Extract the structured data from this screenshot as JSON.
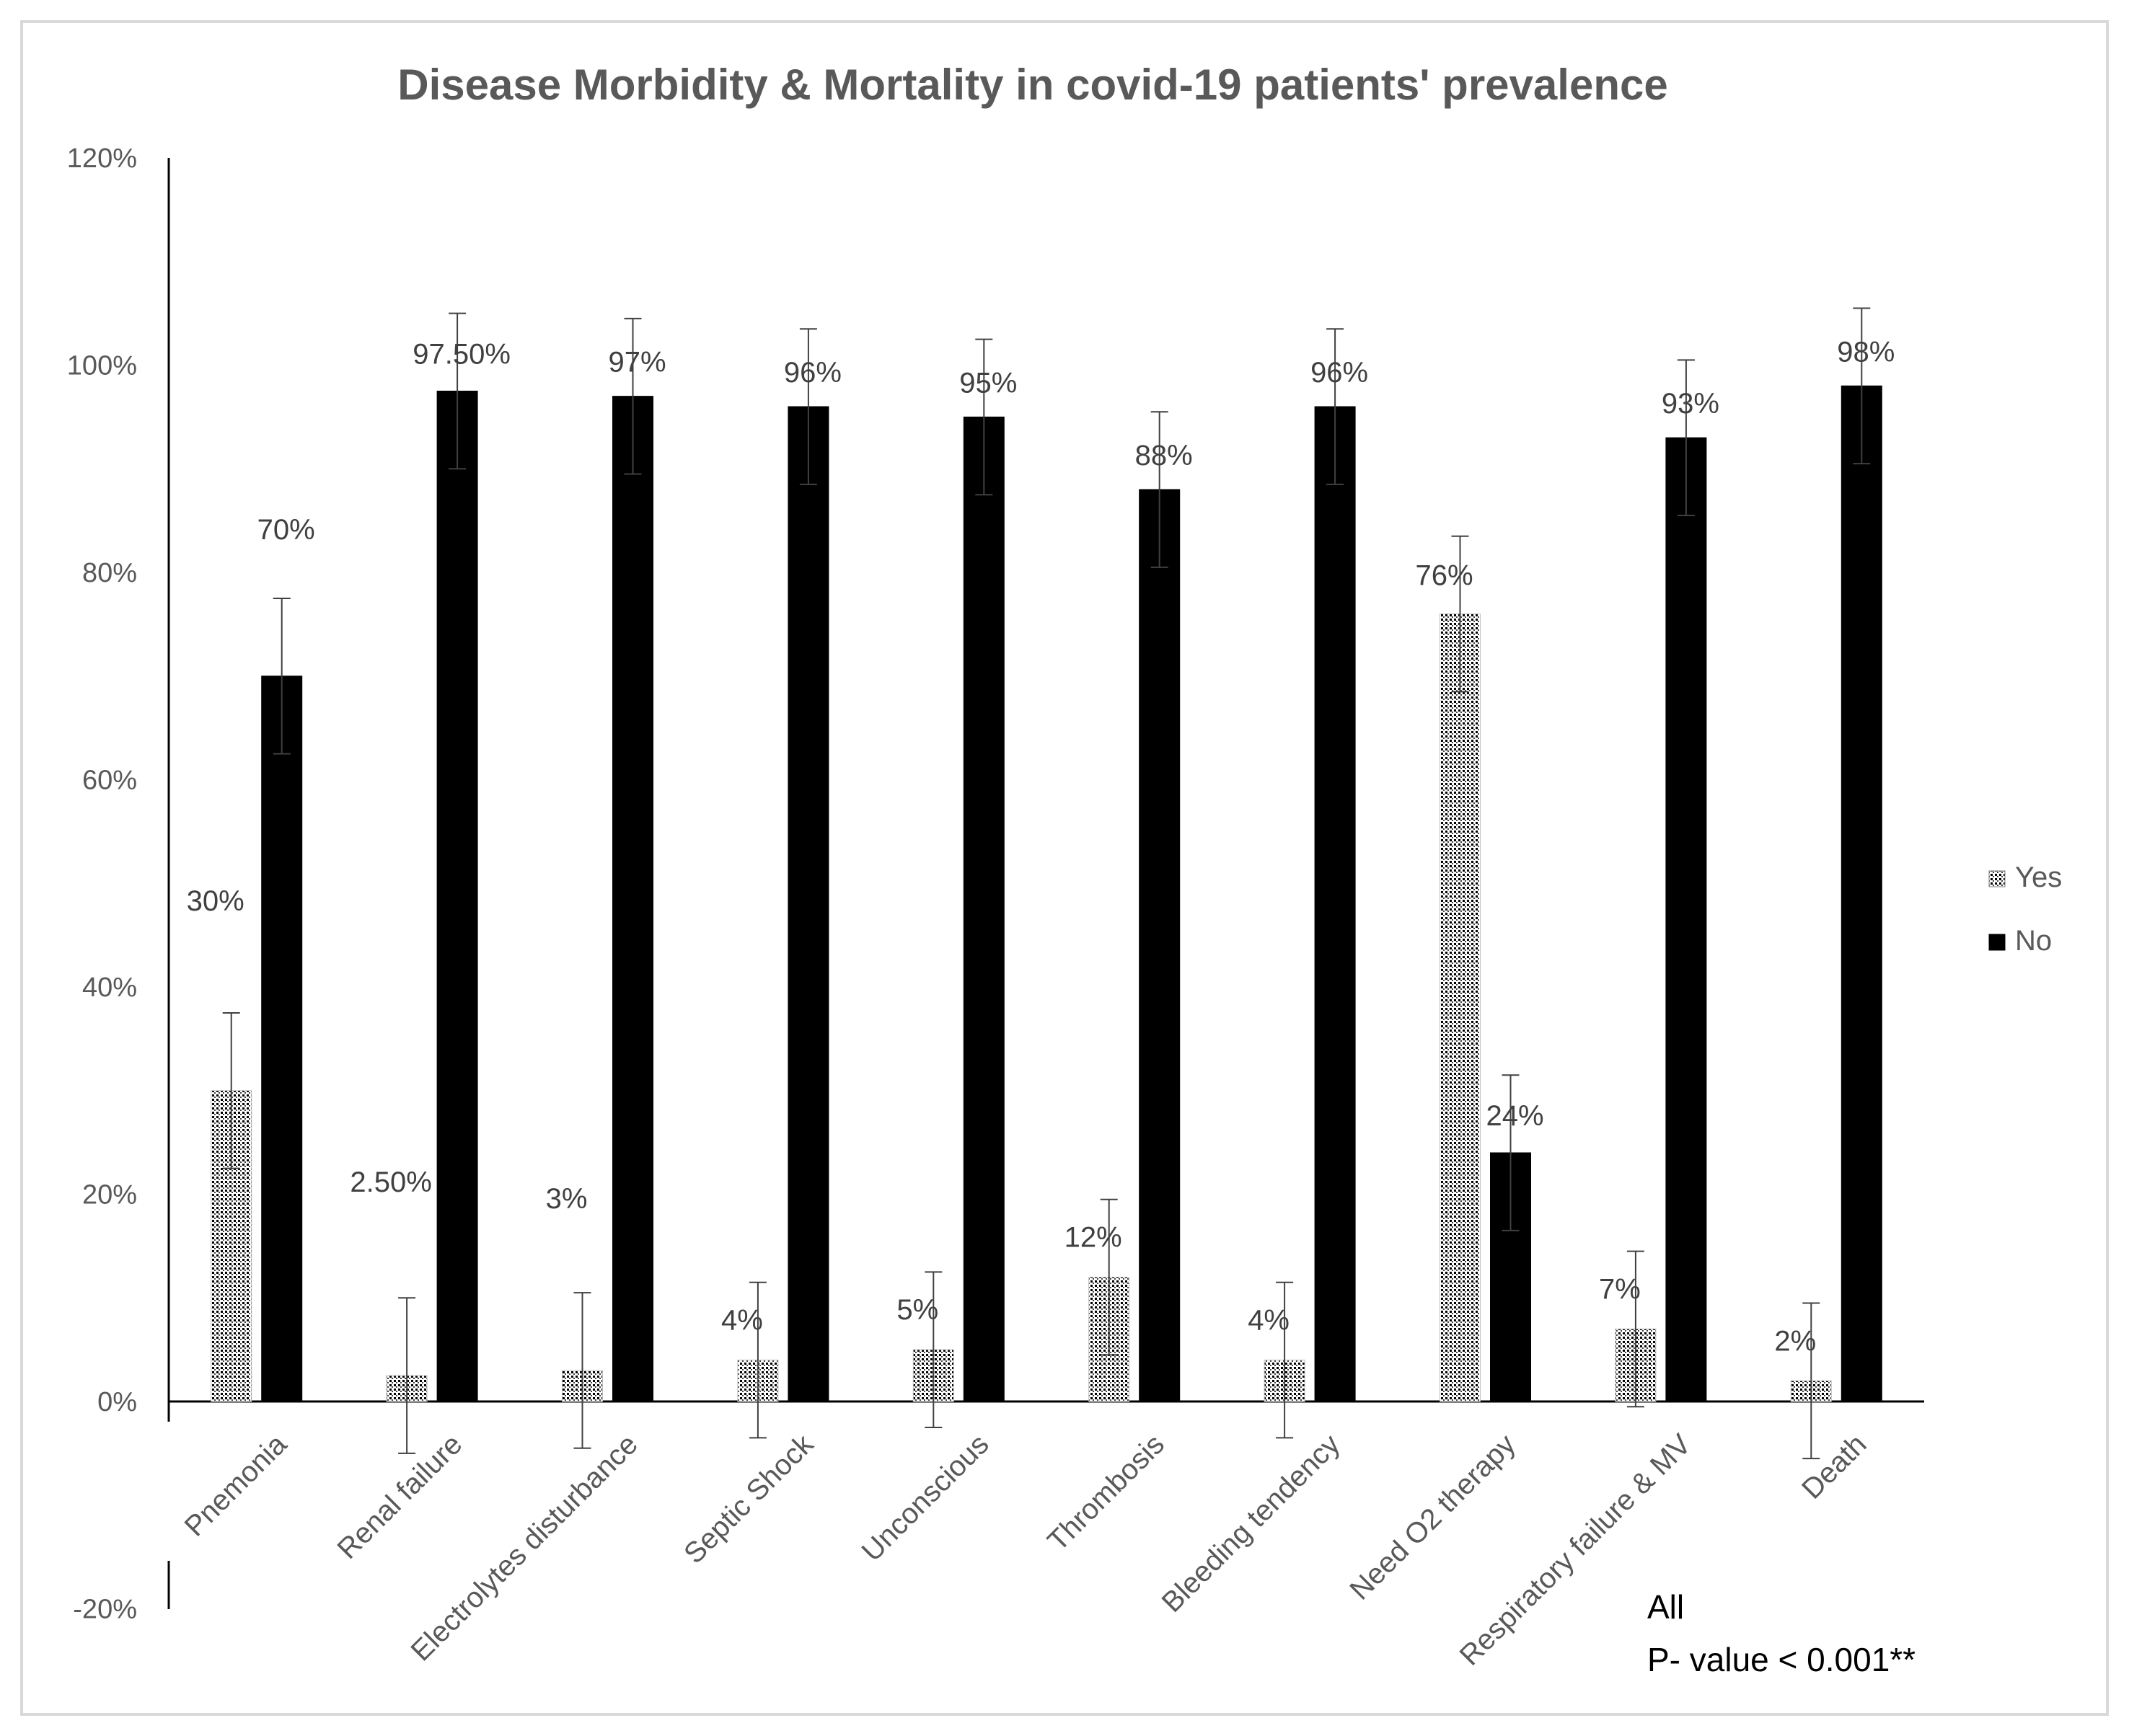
{
  "chart_data": {
    "type": "bar",
    "title": "Disease Morbidity & Mortality in covid-19 patients' prevalence",
    "categories": [
      "Pnemonia",
      "Renal failure",
      "Electrolytes disturbance",
      "Septic Shock",
      "Unconscious",
      "Thrombosis",
      "Bleeding tendency",
      "Need O2 therapy",
      "Respiratory failure & MV",
      "Death"
    ],
    "series": [
      {
        "name": "Yes",
        "values": [
          30,
          2.5,
          3,
          4,
          5,
          12,
          4,
          76,
          7,
          2
        ],
        "labels": [
          "30%",
          "2.50%",
          "3%",
          "4%",
          "5%",
          "12%",
          "4%",
          "76%",
          "7%",
          "2%"
        ],
        "error": 7.5,
        "fill": "dotted"
      },
      {
        "name": "No",
        "values": [
          70,
          97.5,
          97,
          96,
          95,
          88,
          96,
          24,
          93,
          98
        ],
        "labels": [
          "70%",
          "97.50%",
          "97%",
          "96%",
          "95%",
          "88%",
          "96%",
          "24%",
          "93%",
          "98%"
        ],
        "error": 7.5,
        "fill": "#000000"
      }
    ],
    "ylim": [
      -20,
      120
    ],
    "yticks": [
      -20,
      0,
      20,
      40,
      60,
      80,
      100,
      120
    ],
    "ytick_labels": [
      "-20%",
      "0%",
      "20%",
      "40%",
      "60%",
      "80%",
      "100%",
      "120%"
    ],
    "xlabel": "",
    "ylabel": "",
    "legend_position": "right",
    "annotation": [
      "All",
      "P- value < 0.001**"
    ]
  }
}
